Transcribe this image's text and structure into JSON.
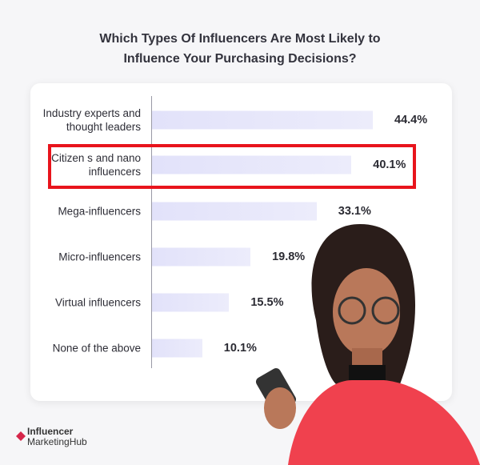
{
  "chart_data": {
    "type": "bar",
    "orientation": "horizontal",
    "title": "Which Types Of Influencers Are Most Likely to Influence Your Purchasing Decisions?",
    "categories": [
      "Industry experts and thought leaders",
      "Citizen s and nano influencers",
      "Mega-influencers",
      "Micro-influencers",
      "Virtual influencers",
      "None of the above"
    ],
    "values": [
      44.4,
      40.1,
      33.1,
      19.8,
      15.5,
      10.1
    ],
    "value_labels": [
      "44.4%",
      "40.1%",
      "33.1%",
      "19.8%",
      "15.5%",
      "10.1%"
    ],
    "color": "#e2e2fa"
  },
  "logo": {
    "line1": "Influencer",
    "line2": "MarketingHub"
  }
}
